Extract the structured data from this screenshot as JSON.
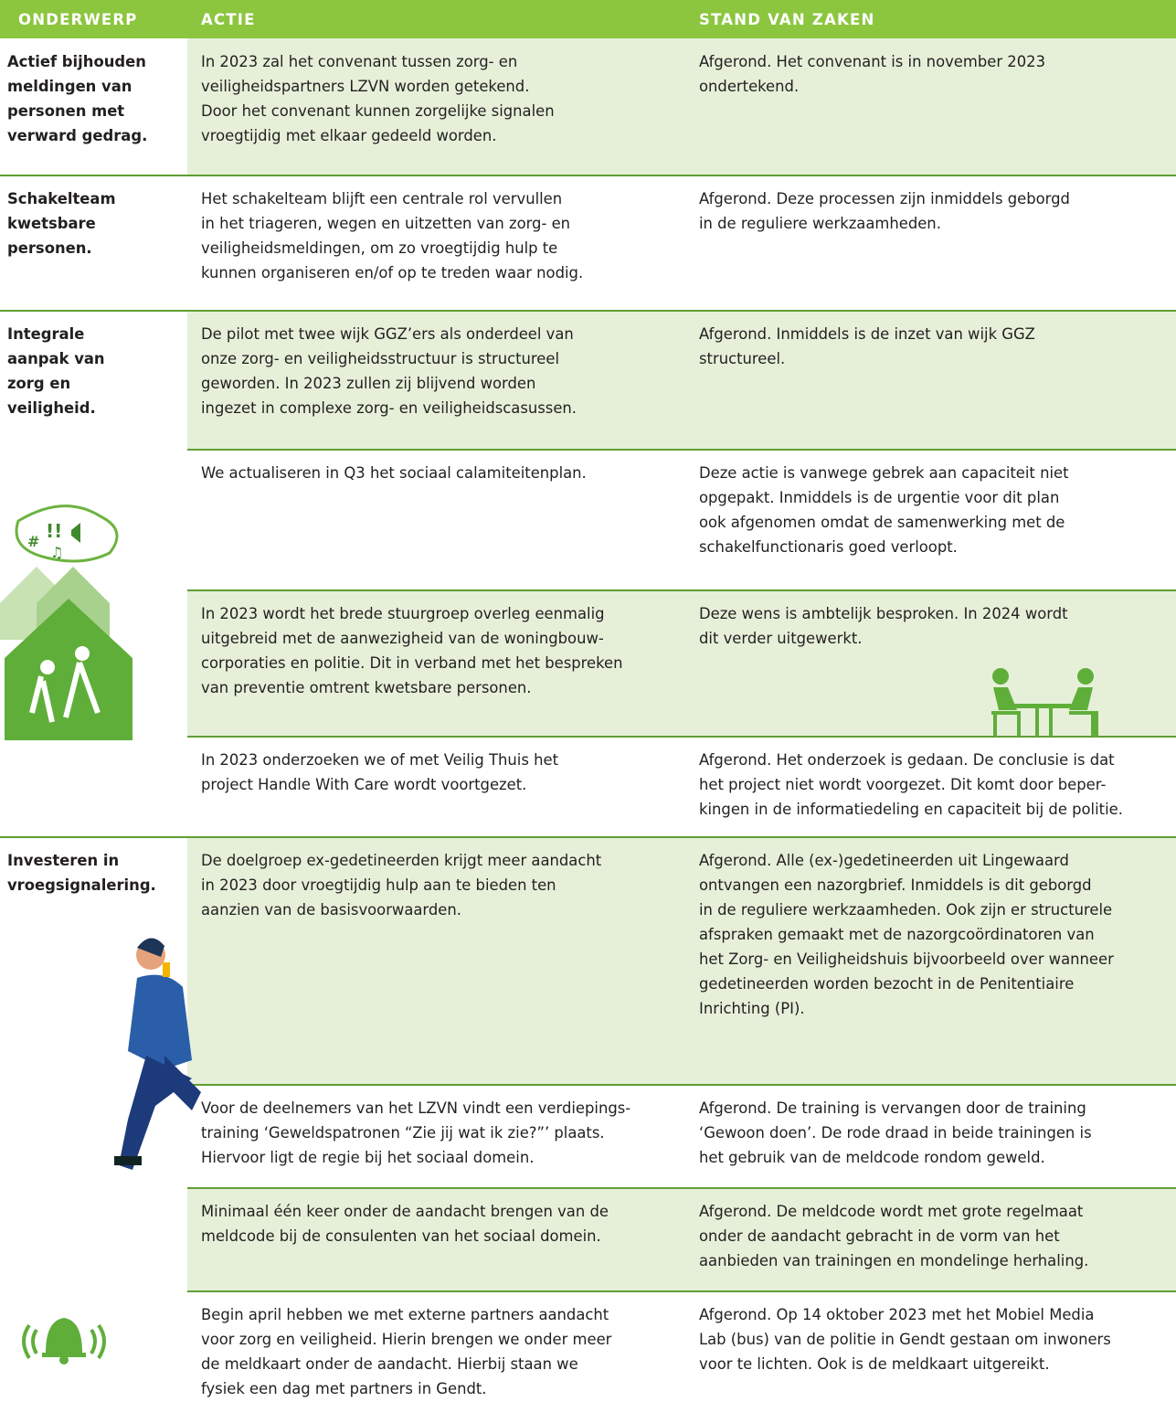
{
  "header": {
    "subject": "ONDERWERP",
    "action": "ACTIE",
    "status": "STAND VAN ZAKEN"
  },
  "table": {
    "rows": [
      {
        "subject": [
          "Actief bijhouden",
          "meldingen van",
          "personen met",
          "verward gedrag."
        ],
        "action": [
          "In 2023 zal het convenant tussen zorg- en",
          "veiligheidspartners LZVN worden getekend.",
          "Door het convenant kunnen zorgelijke signalen",
          "vroegtijdig met elkaar gedeeld worden."
        ],
        "status": [
          "Afgerond. Het convenant is in november 2023",
          "ondertekend."
        ]
      },
      {
        "subject": [
          "Schakelteam",
          "kwetsbare",
          "personen."
        ],
        "action": [
          "Het schakelteam blijft een centrale rol vervullen",
          "in het triageren, wegen en uitzetten van zorg- en",
          "veiligheidsmeldingen, om zo vroegtijdig hulp te",
          "kunnen organiseren en/of op te treden waar nodig."
        ],
        "status": [
          "Afgerond. Deze processen zijn inmiddels geborgd",
          "in de reguliere werkzaamheden."
        ]
      },
      {
        "subject": [
          "Integrale",
          "aanpak van",
          "zorg en",
          "veiligheid."
        ],
        "action": [
          "De pilot met twee wijk GGZ’ers als onderdeel van",
          "onze zorg- en veiligheidsstructuur is structureel",
          "geworden. In 2023 zullen zij blijvend worden",
          "ingezet in complexe zorg- en veiligheidscasussen."
        ],
        "status": [
          "Afgerond. Inmiddels is de inzet van wijk GGZ",
          "structureel."
        ]
      },
      {
        "action": [
          "We actualiseren in Q3 het sociaal calamiteitenplan."
        ],
        "status": [
          "Deze actie is vanwege gebrek aan capaciteit niet",
          "opgepakt. Inmiddels is de urgentie voor dit plan",
          "ook afgenomen omdat de samenwerking met de",
          "schakelfunctionaris goed verloopt."
        ]
      },
      {
        "action": [
          "In 2023 wordt het brede stuurgroep overleg eenmalig",
          "uitgebreid met de aanwezigheid van de woningbouw-",
          "corporaties en politie. Dit in verband met het bespreken",
          "van preventie omtrent kwetsbare personen."
        ],
        "status": [
          "Deze wens is ambtelijk besproken. In 2024 wordt",
          "dit verder uitgewerkt."
        ]
      },
      {
        "action": [
          "In 2023 onderzoeken we of met Veilig Thuis het",
          "project Handle With Care wordt voortgezet."
        ],
        "status": [
          "Afgerond. Het onderzoek is gedaan. De conclusie is dat",
          "het project niet wordt voorgezet. Dit komt door beper-",
          "kingen in de informatiedeling en capaciteit bij de politie."
        ]
      },
      {
        "subject": [
          "Investeren in",
          "vroegsignalering."
        ],
        "action": [
          "De doelgroep ex-gedetineerden krijgt meer aandacht",
          "in 2023 door vroegtijdig hulp aan te bieden ten",
          "aanzien van de basisvoorwaarden."
        ],
        "status": [
          "Afgerond. Alle (ex-)gedetineerden uit Lingewaard",
          "ontvangen een nazorgbrief. Inmiddels is dit geborgd",
          "in de reguliere werkzaamheden. Ook zijn er structurele",
          "afspraken gemaakt met de nazorgcoördinatoren van",
          "het Zorg- en Veiligheidshuis bijvoorbeeld over wanneer",
          "gedetineerden worden bezocht in de Penitentiaire",
          "Inrichting (PI)."
        ]
      },
      {
        "action": [
          "Voor de deelnemers van het LZVN vindt een verdiepings-",
          "training ‘Geweldspatronen “Zie jij wat ik zie?”’ plaats.",
          "Hiervoor ligt de regie bij het sociaal domein."
        ],
        "status": [
          "Afgerond. De training is vervangen door de training",
          "‘Gewoon doen’. De rode draad in beide trainingen is",
          "het gebruik van de meldcode rondom geweld."
        ]
      },
      {
        "action": [
          "Minimaal één keer onder de aandacht brengen van de",
          "meldcode bij de consulenten van het sociaal domein."
        ],
        "status": [
          "Afgerond. De meldcode wordt met grote regelmaat",
          "onder de aandacht gebracht in de vorm van het",
          "aanbieden van trainingen en mondelinge herhaling."
        ]
      },
      {
        "action": [
          "Begin april hebben we met externe partners aandacht",
          "voor zorg en veiligheid. Hierin brengen we onder meer",
          "de meldkaart onder de aandacht. Hierbij staan we",
          "fysiek een dag met partners in Gendt."
        ],
        "status": [
          "Afgerond. Op 14 oktober 2023 met het Mobiel Media",
          "Lab (bus) van de politie in Gendt gestaan om inwoners",
          "voor te lichten. Ook is de meldkaart uitgereikt."
        ]
      }
    ]
  }
}
